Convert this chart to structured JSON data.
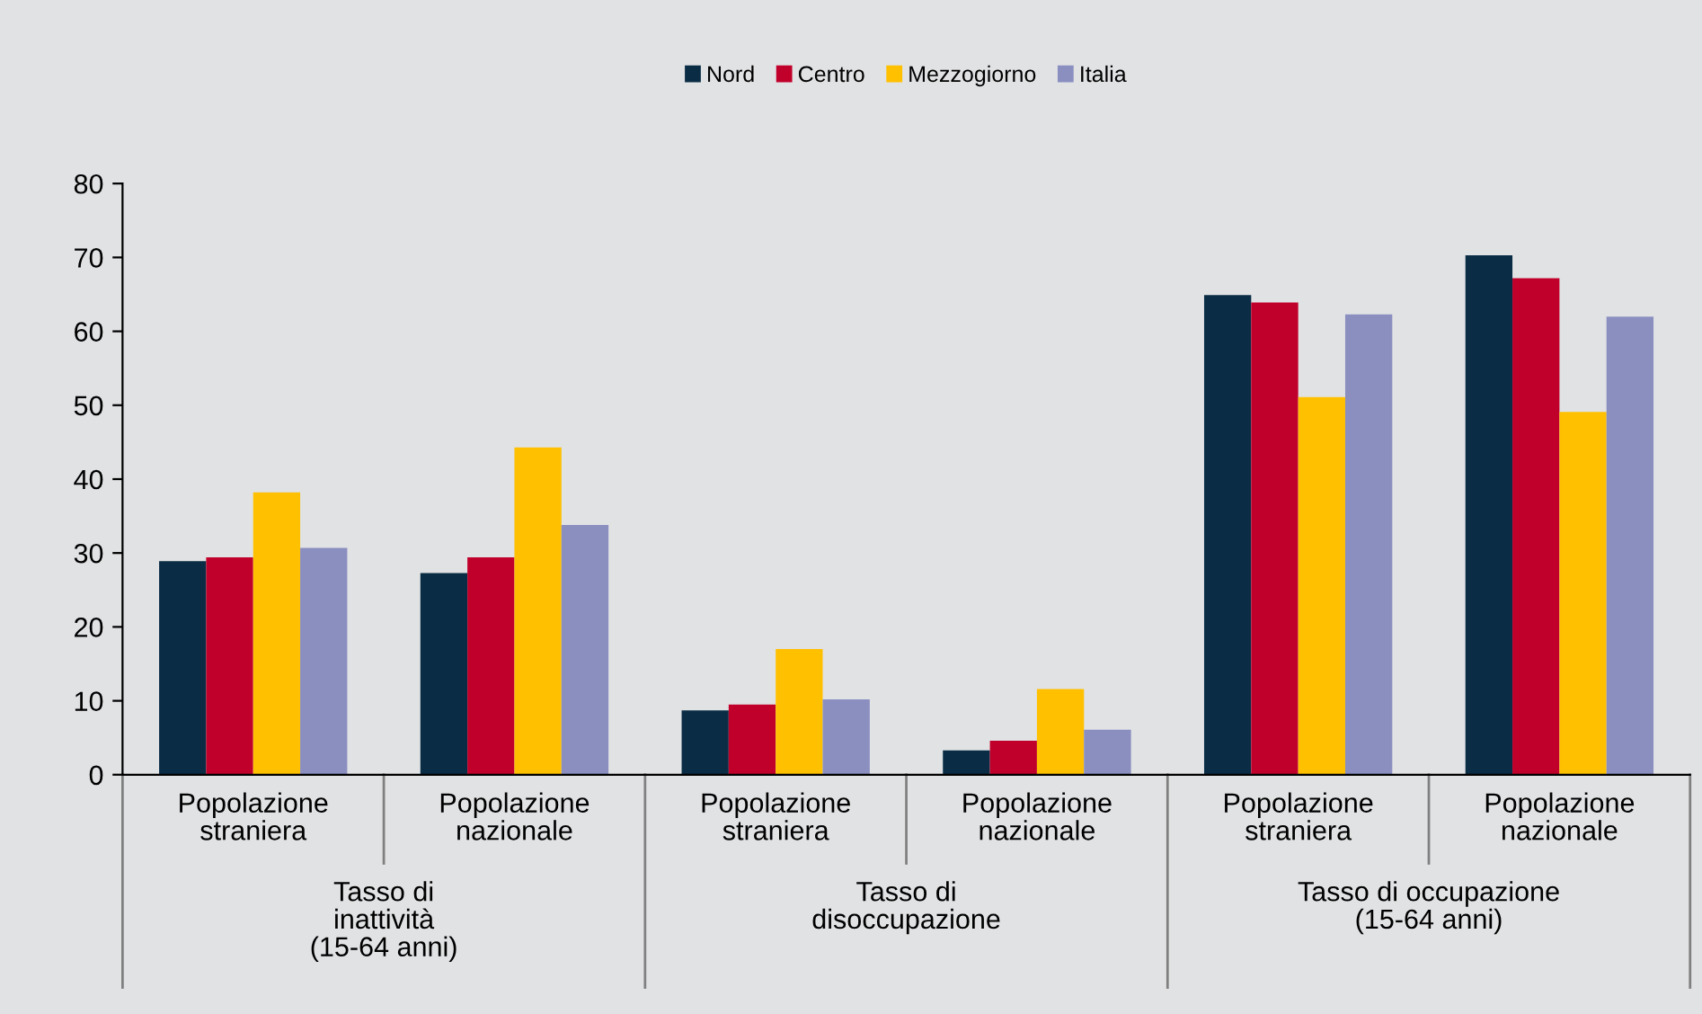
{
  "chart_data": {
    "type": "bar",
    "categories": [
      "Popolazione\nstraniera",
      "Popolazione\nnazionale",
      "Popolazione\nstraniera",
      "Popolazione\nnazionale",
      "Popolazione\nstraniera",
      "Popolazione\nnazionale"
    ],
    "series": [
      {
        "name": "Nord",
        "color": "#0a2d45",
        "values": [
          28.9,
          27.3,
          8.7,
          3.3,
          64.9,
          70.3
        ]
      },
      {
        "name": "Centro",
        "color": "#c0002a",
        "values": [
          29.4,
          29.4,
          9.5,
          4.6,
          63.9,
          67.2
        ]
      },
      {
        "name": "Mezzogiorno",
        "color": "#ffc000",
        "values": [
          38.2,
          44.3,
          17.0,
          11.6,
          51.1,
          49.1
        ]
      },
      {
        "name": "Italia",
        "color": "#8a8fc0",
        "values": [
          30.7,
          33.8,
          10.2,
          6.1,
          62.3,
          62.0
        ]
      }
    ],
    "annotations": [
      "Tasso di\ninattività\n(15-64 anni)",
      "Tasso di\ndisoccupazione",
      "Tasso di occupazione\n(15-64 anni)"
    ],
    "ylim": [
      0,
      80
    ],
    "yticks": [
      0,
      10,
      20,
      30,
      40,
      50,
      60,
      70,
      80
    ],
    "grid": false,
    "legend": "top"
  }
}
